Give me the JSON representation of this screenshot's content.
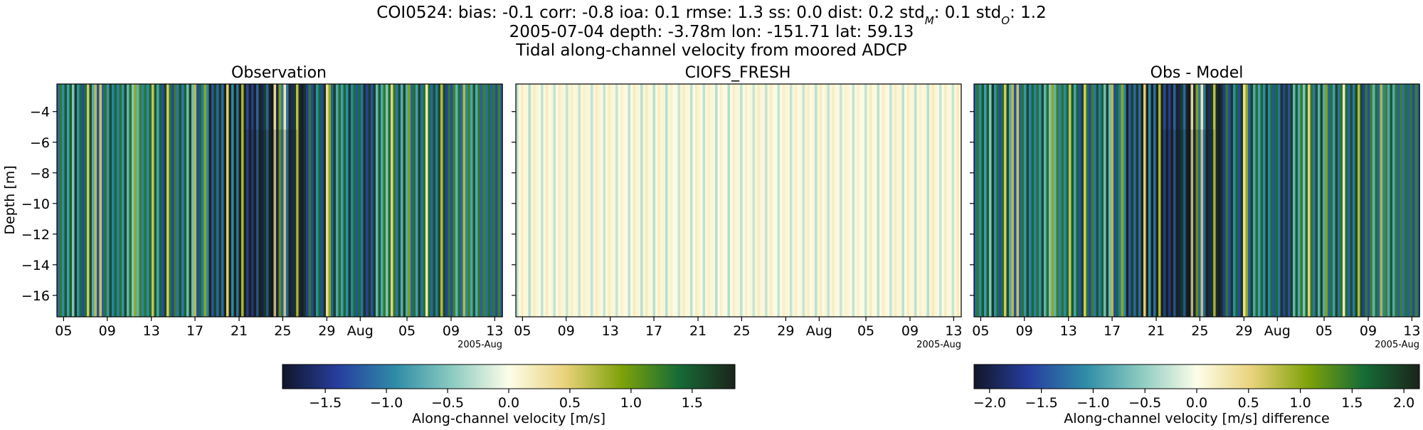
{
  "figure": {
    "title_lines": [
      "2005-07-04 depth: -3.78m lon: -151.71 lat: 59.13",
      "Tidal along-channel velocity from moored ADCP"
    ],
    "stats_line": {
      "station": "COI0524:",
      "bias": "bias: -0.1",
      "corr": "corr: -0.8",
      "ioa": "ioa: 0.1",
      "rmse": "rmse: 1.3",
      "ss": "ss: 0.0",
      "dist": "dist: 0.2",
      "std_m": "std",
      "std_m_sub": "M",
      "std_m_val": ": 0.1",
      "std_o": "std",
      "std_o_sub": "O",
      "std_o_val": ": 1.2"
    }
  },
  "chart_data": [
    {
      "type": "heatmap",
      "title": "Observation",
      "ylabel": "Depth [m]",
      "xlabel": "",
      "x_tick_labels": [
        "05",
        "09",
        "13",
        "17",
        "21",
        "25",
        "29",
        "Aug",
        "05",
        "09",
        "13"
      ],
      "x_offset_label": "2005-Aug",
      "y_ticks": [
        -4,
        -6,
        -8,
        -10,
        -12,
        -14,
        -16
      ],
      "ylim": [
        -17.4,
        -2.2
      ],
      "xlim": [
        "2005-07-04",
        "2005-08-13"
      ],
      "colormap": "delta",
      "clim": [
        -1.85,
        1.85
      ]
    },
    {
      "type": "heatmap",
      "title": "CIOFS_FRESH",
      "ylabel": "",
      "xlabel": "",
      "x_tick_labels": [
        "05",
        "09",
        "13",
        "17",
        "21",
        "25",
        "29",
        "Aug",
        "05",
        "09",
        "13"
      ],
      "x_offset_label": "2005-Aug",
      "ylim": [
        -17.4,
        -2.2
      ],
      "xlim": [
        "2005-07-04",
        "2005-08-13"
      ],
      "colormap": "delta",
      "clim": [
        -1.85,
        1.85
      ]
    },
    {
      "type": "heatmap",
      "title": "Obs - Model",
      "ylabel": "",
      "xlabel": "",
      "x_tick_labels": [
        "05",
        "09",
        "13",
        "17",
        "21",
        "25",
        "29",
        "Aug",
        "05",
        "09",
        "13"
      ],
      "x_offset_label": "2005-Aug",
      "ylim": [
        -17.4,
        -2.2
      ],
      "xlim": [
        "2005-07-04",
        "2005-08-13"
      ],
      "colormap": "delta",
      "clim": [
        -2.15,
        2.15
      ]
    }
  ],
  "colorbars": [
    {
      "label": "Along-channel velocity [m/s]",
      "ticks": [
        -1.5,
        -1.0,
        -0.5,
        0.0,
        0.5,
        1.0,
        1.5
      ],
      "tick_labels": [
        "−1.5",
        "−1.0",
        "−0.5",
        "0.0",
        "0.5",
        "1.0",
        "1.5"
      ],
      "range": [
        -1.85,
        1.85
      ]
    },
    {
      "label": "Along-channel velocity [m/s] difference",
      "ticks": [
        -2.0,
        -1.5,
        -1.0,
        -0.5,
        0.0,
        0.5,
        1.0,
        1.5,
        2.0
      ],
      "tick_labels": [
        "−2.0",
        "−1.5",
        "−1.0",
        "−0.5",
        "0.0",
        "0.5",
        "1.0",
        "1.5",
        "2.0"
      ],
      "range": [
        -2.15,
        2.15
      ]
    }
  ],
  "colors": {
    "cmap_stops": [
      "#111628",
      "#273fa0",
      "#2f8ca7",
      "#8ccbc0",
      "#fdfdea",
      "#e9d27a",
      "#7ea209",
      "#166c36",
      "#1b241b"
    ]
  }
}
